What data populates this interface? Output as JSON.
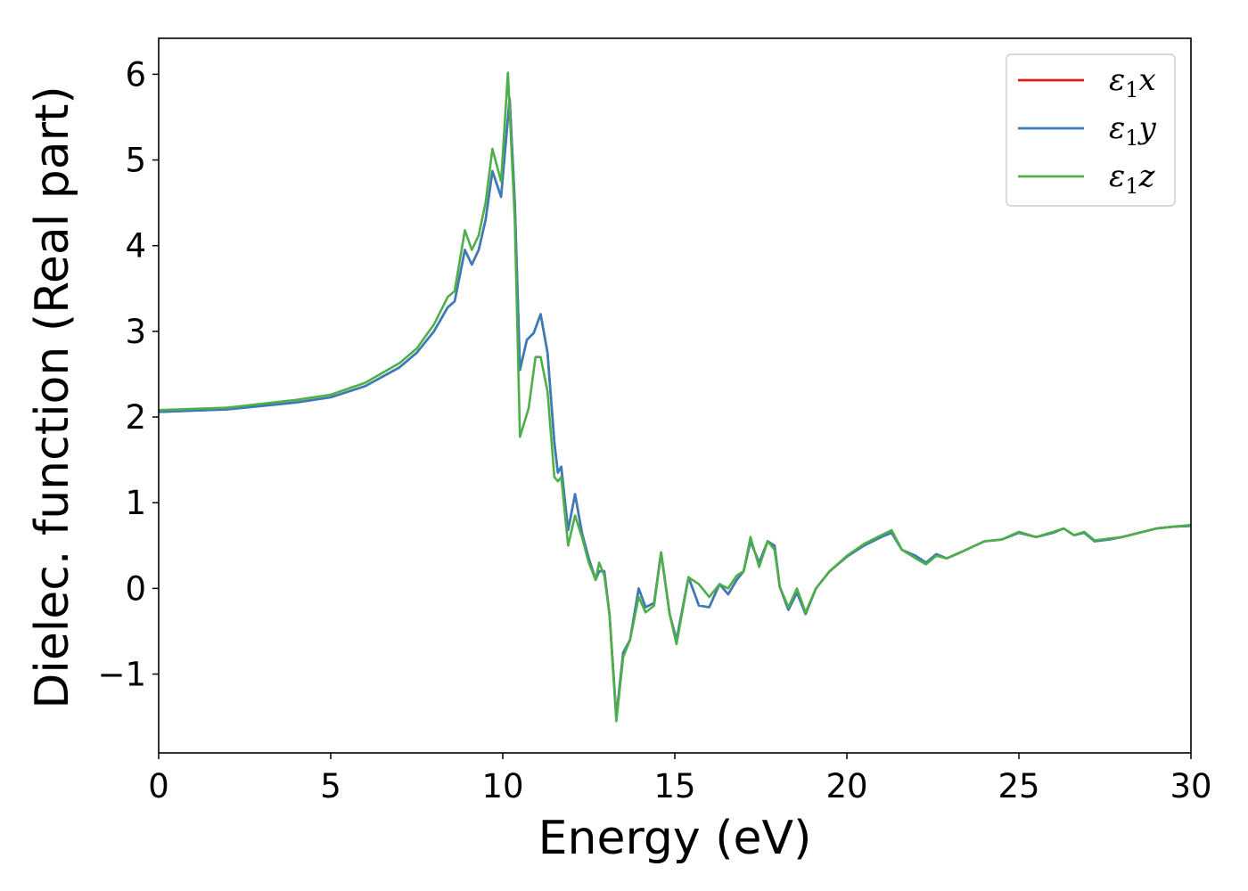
{
  "chart_data": {
    "type": "line",
    "xlabel": "Energy (eV)",
    "ylabel": "Dielec. function (Real part)",
    "xlim": [
      0,
      30
    ],
    "ylim": [
      -1.92,
      6.42
    ],
    "xticks": [
      0,
      5,
      10,
      15,
      20,
      25,
      30
    ],
    "xtick_labels": [
      "0",
      "5",
      "10",
      "15",
      "20",
      "25",
      "30"
    ],
    "yticks": [
      -1,
      0,
      1,
      2,
      3,
      4,
      5,
      6
    ],
    "ytick_labels": [
      "−1",
      "0",
      "1",
      "2",
      "3",
      "4",
      "5",
      "6"
    ],
    "grid": false,
    "legend_position": "top-right",
    "series": [
      {
        "name": "ε1x",
        "legend_symbol": "ε",
        "legend_subscript": "1",
        "legend_suffix": "x",
        "color": "#e41a1c",
        "points": [
          [
            0,
            2.06
          ],
          [
            2,
            2.09
          ],
          [
            4,
            2.17
          ],
          [
            5,
            2.23
          ],
          [
            6,
            2.36
          ],
          [
            7,
            2.58
          ],
          [
            7.5,
            2.75
          ],
          [
            8,
            3.0
          ],
          [
            8.4,
            3.28
          ],
          [
            8.6,
            3.35
          ],
          [
            8.9,
            3.95
          ],
          [
            9.1,
            3.78
          ],
          [
            9.3,
            3.95
          ],
          [
            9.5,
            4.3
          ],
          [
            9.7,
            4.87
          ],
          [
            9.95,
            4.57
          ],
          [
            10.2,
            5.72
          ],
          [
            10.35,
            4.5
          ],
          [
            10.5,
            2.55
          ],
          [
            10.7,
            2.9
          ],
          [
            10.9,
            2.98
          ],
          [
            11.1,
            3.2
          ],
          [
            11.3,
            2.75
          ],
          [
            11.5,
            1.7
          ],
          [
            11.6,
            1.35
          ],
          [
            11.7,
            1.42
          ],
          [
            11.9,
            0.68
          ],
          [
            12.1,
            1.1
          ],
          [
            12.3,
            0.65
          ],
          [
            12.5,
            0.35
          ],
          [
            12.7,
            0.1
          ],
          [
            12.8,
            0.2
          ],
          [
            12.95,
            0.2
          ],
          [
            13.1,
            -0.3
          ],
          [
            13.3,
            -1.5
          ],
          [
            13.5,
            -0.75
          ],
          [
            13.7,
            -0.6
          ],
          [
            13.95,
            0.0
          ],
          [
            14.15,
            -0.22
          ],
          [
            14.4,
            -0.17
          ],
          [
            14.6,
            0.42
          ],
          [
            14.85,
            -0.3
          ],
          [
            15.05,
            -0.6
          ],
          [
            15.4,
            0.13
          ],
          [
            15.7,
            -0.2
          ],
          [
            16.0,
            -0.22
          ],
          [
            16.3,
            0.05
          ],
          [
            16.55,
            -0.07
          ],
          [
            16.8,
            0.1
          ],
          [
            17.0,
            0.2
          ],
          [
            17.2,
            0.55
          ],
          [
            17.45,
            0.3
          ],
          [
            17.7,
            0.55
          ],
          [
            17.9,
            0.5
          ],
          [
            18.05,
            0.02
          ],
          [
            18.3,
            -0.25
          ],
          [
            18.55,
            -0.05
          ],
          [
            18.8,
            -0.3
          ],
          [
            19.1,
            0.0
          ],
          [
            19.5,
            0.2
          ],
          [
            20.0,
            0.37
          ],
          [
            20.5,
            0.5
          ],
          [
            21.0,
            0.6
          ],
          [
            21.3,
            0.65
          ],
          [
            21.6,
            0.45
          ],
          [
            22.0,
            0.38
          ],
          [
            22.3,
            0.3
          ],
          [
            22.6,
            0.4
          ],
          [
            22.9,
            0.35
          ],
          [
            23.3,
            0.42
          ],
          [
            24.0,
            0.55
          ],
          [
            24.5,
            0.57
          ],
          [
            25.0,
            0.65
          ],
          [
            25.5,
            0.6
          ],
          [
            26.0,
            0.65
          ],
          [
            26.3,
            0.7
          ],
          [
            26.6,
            0.62
          ],
          [
            26.9,
            0.65
          ],
          [
            27.2,
            0.55
          ],
          [
            27.6,
            0.57
          ],
          [
            28.0,
            0.6
          ],
          [
            28.5,
            0.65
          ],
          [
            29.0,
            0.7
          ],
          [
            29.5,
            0.72
          ],
          [
            30.0,
            0.73
          ]
        ]
      },
      {
        "name": "ε1y",
        "legend_symbol": "ε",
        "legend_subscript": "1",
        "legend_suffix": "y",
        "color": "#377eb8",
        "points": [
          [
            0,
            2.06
          ],
          [
            2,
            2.09
          ],
          [
            4,
            2.17
          ],
          [
            5,
            2.23
          ],
          [
            6,
            2.36
          ],
          [
            7,
            2.58
          ],
          [
            7.5,
            2.75
          ],
          [
            8,
            3.0
          ],
          [
            8.4,
            3.28
          ],
          [
            8.6,
            3.35
          ],
          [
            8.9,
            3.95
          ],
          [
            9.1,
            3.78
          ],
          [
            9.3,
            3.95
          ],
          [
            9.5,
            4.3
          ],
          [
            9.7,
            4.87
          ],
          [
            9.95,
            4.57
          ],
          [
            10.2,
            5.72
          ],
          [
            10.35,
            4.5
          ],
          [
            10.5,
            2.55
          ],
          [
            10.7,
            2.9
          ],
          [
            10.9,
            2.98
          ],
          [
            11.1,
            3.2
          ],
          [
            11.3,
            2.75
          ],
          [
            11.5,
            1.7
          ],
          [
            11.6,
            1.35
          ],
          [
            11.7,
            1.42
          ],
          [
            11.9,
            0.68
          ],
          [
            12.1,
            1.1
          ],
          [
            12.3,
            0.65
          ],
          [
            12.5,
            0.35
          ],
          [
            12.7,
            0.1
          ],
          [
            12.8,
            0.2
          ],
          [
            12.95,
            0.2
          ],
          [
            13.1,
            -0.3
          ],
          [
            13.3,
            -1.5
          ],
          [
            13.5,
            -0.75
          ],
          [
            13.7,
            -0.6
          ],
          [
            13.95,
            0.0
          ],
          [
            14.15,
            -0.22
          ],
          [
            14.4,
            -0.17
          ],
          [
            14.6,
            0.42
          ],
          [
            14.85,
            -0.3
          ],
          [
            15.05,
            -0.6
          ],
          [
            15.4,
            0.13
          ],
          [
            15.7,
            -0.2
          ],
          [
            16.0,
            -0.22
          ],
          [
            16.3,
            0.05
          ],
          [
            16.55,
            -0.07
          ],
          [
            16.8,
            0.1
          ],
          [
            17.0,
            0.2
          ],
          [
            17.2,
            0.55
          ],
          [
            17.45,
            0.3
          ],
          [
            17.7,
            0.55
          ],
          [
            17.9,
            0.5
          ],
          [
            18.05,
            0.02
          ],
          [
            18.3,
            -0.25
          ],
          [
            18.55,
            -0.05
          ],
          [
            18.8,
            -0.3
          ],
          [
            19.1,
            0.0
          ],
          [
            19.5,
            0.2
          ],
          [
            20.0,
            0.37
          ],
          [
            20.5,
            0.5
          ],
          [
            21.0,
            0.6
          ],
          [
            21.3,
            0.65
          ],
          [
            21.6,
            0.45
          ],
          [
            22.0,
            0.38
          ],
          [
            22.3,
            0.3
          ],
          [
            22.6,
            0.4
          ],
          [
            22.9,
            0.35
          ],
          [
            23.3,
            0.42
          ],
          [
            24.0,
            0.55
          ],
          [
            24.5,
            0.57
          ],
          [
            25.0,
            0.65
          ],
          [
            25.5,
            0.6
          ],
          [
            26.0,
            0.65
          ],
          [
            26.3,
            0.7
          ],
          [
            26.6,
            0.62
          ],
          [
            26.9,
            0.65
          ],
          [
            27.2,
            0.55
          ],
          [
            27.6,
            0.57
          ],
          [
            28.0,
            0.6
          ],
          [
            28.5,
            0.65
          ],
          [
            29.0,
            0.7
          ],
          [
            29.5,
            0.72
          ],
          [
            30.0,
            0.73
          ]
        ]
      },
      {
        "name": "ε1z",
        "legend_symbol": "ε",
        "legend_subscript": "1",
        "legend_suffix": "z",
        "color": "#4daf4a",
        "points": [
          [
            0,
            2.08
          ],
          [
            2,
            2.11
          ],
          [
            4,
            2.2
          ],
          [
            5,
            2.26
          ],
          [
            6,
            2.4
          ],
          [
            7,
            2.63
          ],
          [
            7.5,
            2.8
          ],
          [
            8,
            3.08
          ],
          [
            8.4,
            3.4
          ],
          [
            8.6,
            3.47
          ],
          [
            8.9,
            4.18
          ],
          [
            9.1,
            3.95
          ],
          [
            9.3,
            4.12
          ],
          [
            9.5,
            4.5
          ],
          [
            9.7,
            5.13
          ],
          [
            9.95,
            4.75
          ],
          [
            10.15,
            6.02
          ],
          [
            10.35,
            4.3
          ],
          [
            10.5,
            1.77
          ],
          [
            10.75,
            2.1
          ],
          [
            10.95,
            2.7
          ],
          [
            11.1,
            2.7
          ],
          [
            11.3,
            2.3
          ],
          [
            11.5,
            1.3
          ],
          [
            11.6,
            1.25
          ],
          [
            11.7,
            1.3
          ],
          [
            11.9,
            0.5
          ],
          [
            12.1,
            0.85
          ],
          [
            12.3,
            0.6
          ],
          [
            12.5,
            0.3
          ],
          [
            12.7,
            0.1
          ],
          [
            12.8,
            0.3
          ],
          [
            12.95,
            0.15
          ],
          [
            13.1,
            -0.3
          ],
          [
            13.3,
            -1.55
          ],
          [
            13.5,
            -0.8
          ],
          [
            13.7,
            -0.6
          ],
          [
            13.95,
            -0.1
          ],
          [
            14.15,
            -0.28
          ],
          [
            14.4,
            -0.2
          ],
          [
            14.6,
            0.42
          ],
          [
            14.85,
            -0.3
          ],
          [
            15.05,
            -0.65
          ],
          [
            15.4,
            0.13
          ],
          [
            15.7,
            0.05
          ],
          [
            16.0,
            -0.1
          ],
          [
            16.3,
            0.05
          ],
          [
            16.55,
            0.0
          ],
          [
            16.8,
            0.15
          ],
          [
            17.0,
            0.2
          ],
          [
            17.2,
            0.6
          ],
          [
            17.45,
            0.25
          ],
          [
            17.7,
            0.55
          ],
          [
            17.9,
            0.45
          ],
          [
            18.05,
            0.02
          ],
          [
            18.3,
            -0.22
          ],
          [
            18.55,
            0.0
          ],
          [
            18.8,
            -0.28
          ],
          [
            19.1,
            0.0
          ],
          [
            19.5,
            0.2
          ],
          [
            20.0,
            0.38
          ],
          [
            20.5,
            0.52
          ],
          [
            21.0,
            0.62
          ],
          [
            21.3,
            0.68
          ],
          [
            21.6,
            0.45
          ],
          [
            22.0,
            0.35
          ],
          [
            22.3,
            0.28
          ],
          [
            22.6,
            0.38
          ],
          [
            22.9,
            0.35
          ],
          [
            23.3,
            0.42
          ],
          [
            24.0,
            0.55
          ],
          [
            24.5,
            0.57
          ],
          [
            25.0,
            0.66
          ],
          [
            25.5,
            0.6
          ],
          [
            26.0,
            0.66
          ],
          [
            26.3,
            0.7
          ],
          [
            26.6,
            0.62
          ],
          [
            26.9,
            0.66
          ],
          [
            27.2,
            0.56
          ],
          [
            27.6,
            0.58
          ],
          [
            28.0,
            0.6
          ],
          [
            28.5,
            0.65
          ],
          [
            29.0,
            0.7
          ],
          [
            29.5,
            0.72
          ],
          [
            30.0,
            0.74
          ]
        ]
      }
    ]
  }
}
